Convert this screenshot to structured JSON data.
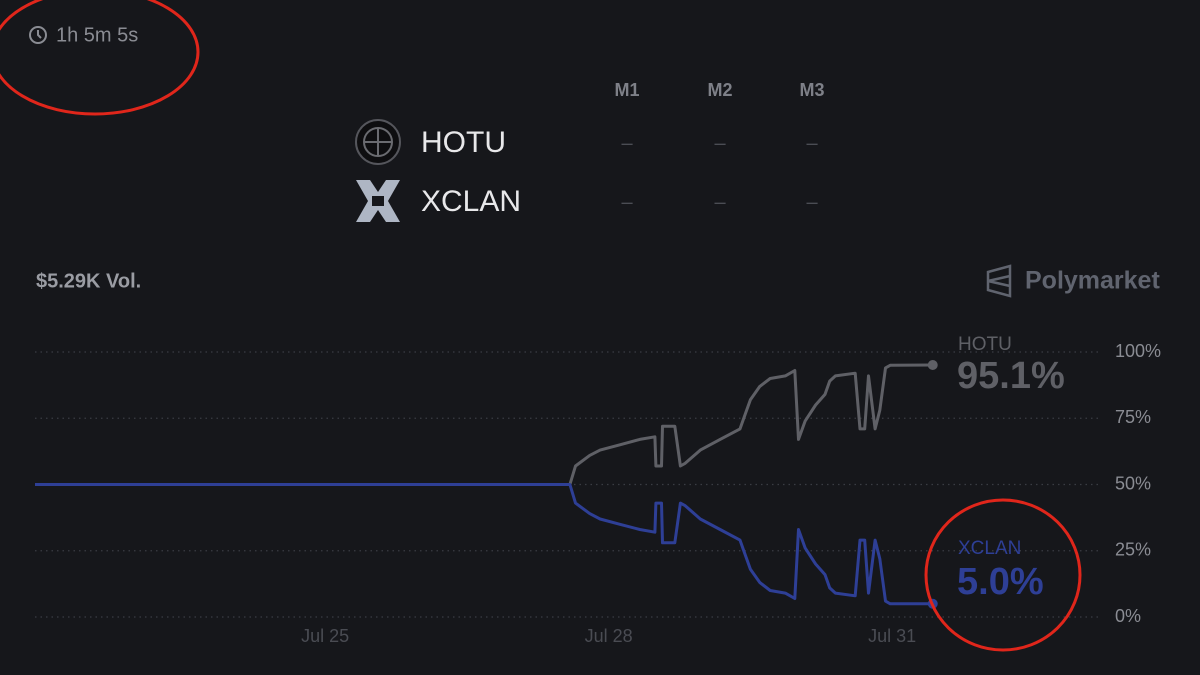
{
  "timer": "1h 5m 5s",
  "table": {
    "columns": [
      "M1",
      "M2",
      "M3"
    ],
    "rows": [
      {
        "team": "HOTU",
        "scores": [
          "–",
          "–",
          "–"
        ]
      },
      {
        "team": "XCLAN",
        "scores": [
          "–",
          "–",
          "–"
        ]
      }
    ]
  },
  "volume": "$5.29K Vol.",
  "brand": "Polymarket",
  "chart_data": {
    "type": "line",
    "x": [
      21.93,
      27.59,
      27.65,
      27.8,
      27.91,
      28.12,
      28.33,
      28.49,
      28.5,
      28.56,
      28.57,
      28.7,
      28.76,
      28.81,
      28.97,
      29.18,
      29.39,
      29.44,
      29.5,
      29.6,
      29.71,
      29.87,
      29.97,
      30.01,
      30.08,
      30.19,
      30.29,
      30.34,
      30.4,
      30.61,
      30.66,
      30.71,
      30.75,
      30.82,
      30.87,
      30.93,
      30.98,
      31.43
    ],
    "series": [
      {
        "name": "HOTU",
        "color": "#5f6066",
        "values": [
          50,
          50,
          57,
          61,
          63,
          65,
          67,
          68,
          57,
          57,
          72,
          72,
          57,
          58,
          63,
          67,
          71,
          76,
          82,
          87,
          90,
          91,
          93,
          67,
          74,
          80,
          84,
          89,
          91,
          92,
          71,
          71,
          91,
          71,
          78,
          94,
          95,
          95.1
        ],
        "value_labels": [
          null,
          null,
          null,
          null,
          null,
          null,
          null,
          null,
          null,
          null,
          null,
          null,
          null,
          null,
          null,
          null,
          null,
          null,
          null,
          null,
          null,
          null,
          null,
          null,
          null,
          null,
          null,
          null,
          null,
          null,
          null,
          null,
          null,
          null,
          null,
          null,
          null,
          "95.1%"
        ]
      },
      {
        "name": "XCLAN",
        "color": "#2e3f96",
        "values": [
          50,
          50,
          43,
          39,
          37,
          35,
          33,
          32,
          43,
          43,
          28,
          28,
          43,
          42,
          37,
          33,
          29,
          24,
          18,
          13,
          10,
          9,
          7,
          33,
          26,
          20,
          16,
          11,
          9,
          8,
          29,
          29,
          9,
          29,
          22,
          6,
          5,
          5.0
        ],
        "value_labels": [
          null,
          null,
          null,
          null,
          null,
          null,
          null,
          null,
          null,
          null,
          null,
          null,
          null,
          null,
          null,
          null,
          null,
          null,
          null,
          null,
          null,
          null,
          null,
          null,
          null,
          null,
          null,
          null,
          null,
          null,
          null,
          null,
          null,
          null,
          null,
          null,
          null,
          "5.0%"
        ]
      }
    ],
    "xlim": [
      21.93,
      33.2
    ],
    "xticks": [
      {
        "value": 25,
        "label": "Jul 25"
      },
      {
        "value": 28,
        "label": "Jul 28"
      },
      {
        "value": 31,
        "label": "Jul 31"
      }
    ],
    "ylim": [
      0,
      100
    ],
    "yticks": [
      {
        "value": 0,
        "label": "0%"
      },
      {
        "value": 25,
        "label": "25%"
      },
      {
        "value": 50,
        "label": "50%"
      },
      {
        "value": 75,
        "label": "75%"
      },
      {
        "value": 100,
        "label": "100%"
      }
    ],
    "grid": true
  }
}
